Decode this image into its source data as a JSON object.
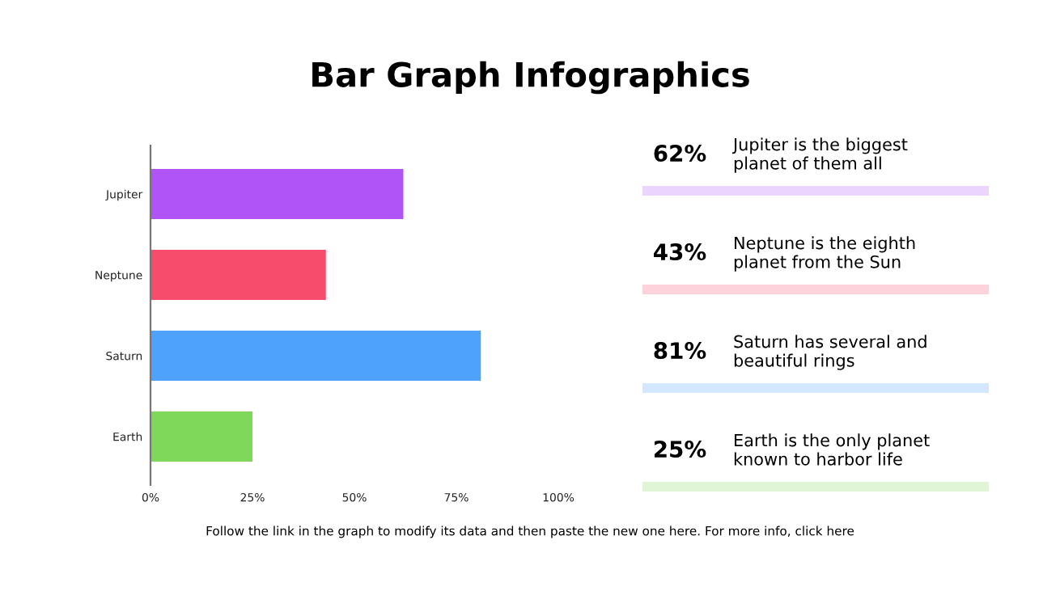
{
  "chart_data": {
    "type": "bar",
    "orientation": "horizontal",
    "title": "Bar Graph Infographics",
    "categories": [
      "Jupiter",
      "Neptune",
      "Saturn",
      "Earth"
    ],
    "values": [
      62,
      43,
      81,
      25
    ],
    "colors": [
      "#b054f8",
      "#f84c6c",
      "#4ea2fb",
      "#80d85a"
    ],
    "xlim": [
      0,
      100
    ],
    "xticks": [
      {
        "value": 0,
        "label": "0%"
      },
      {
        "value": 25,
        "label": "25%"
      },
      {
        "value": 50,
        "label": "50%"
      },
      {
        "value": 75,
        "label": "75%"
      },
      {
        "value": 100,
        "label": "100%"
      }
    ],
    "grid": false,
    "legend": false,
    "annotations": [
      "62%",
      "Jupiter is the biggest\nplanet of them all",
      "43%",
      "Neptune is the eighth\nplanet from the Sun",
      "81%",
      "Saturn has several and\nbeautiful rings",
      "25%",
      "Earth is the only planet\nknown to harbor life",
      "Follow the link in the graph to modify its data and then paste the new one here. For more info, click here"
    ]
  }
}
